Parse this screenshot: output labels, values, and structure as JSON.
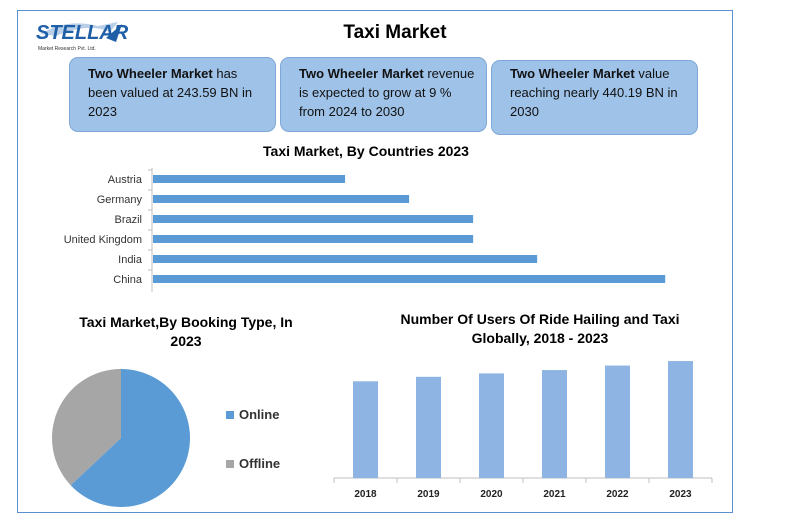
{
  "logo": {
    "brand": "STELLAR",
    "tagline": "Market Research Pvt. Ltd."
  },
  "title": "Taxi Market",
  "info_boxes": [
    {
      "bold": "Two Wheeler Market",
      "rest": " has been valued at 243.59 BN in 2023"
    },
    {
      "bold": "Two Wheeler Market",
      "rest": " revenue is expected to grow at 9 % from 2024 to 2030"
    },
    {
      "bold": "Two Wheeler Market",
      "rest": " value reaching nearly 440.19 BN in 2030"
    }
  ],
  "colors": {
    "bar": "#5b9bd5",
    "bar2": "#8db4e2",
    "online": "#5b9bd5",
    "offline": "#a6a6a6",
    "box": "#9fc2e8"
  },
  "chart_data": [
    {
      "type": "bar",
      "orientation": "horizontal",
      "title": "Taxi Market, By Countries 2023",
      "categories": [
        "Austria",
        "Germany",
        "Brazil",
        "United Kingdom",
        "India",
        "China"
      ],
      "values": [
        30,
        40,
        50,
        50,
        60,
        80
      ],
      "xlim": [
        0,
        82
      ],
      "grid": false
    },
    {
      "type": "pie",
      "title": "Taxi Market,By Booking Type, In 2023",
      "labels": [
        "Online",
        "Offline"
      ],
      "values": [
        63,
        37
      ],
      "legend": "right"
    },
    {
      "type": "bar",
      "title": "Number Of Users Of Ride Hailing and Taxi Globally, 2018 - 2023",
      "categories": [
        "2018",
        "2019",
        "2020",
        "2021",
        "2022",
        "2023"
      ],
      "values": [
        86,
        90,
        93,
        96,
        100,
        104
      ],
      "ylim": [
        0,
        110
      ],
      "grid": false
    }
  ]
}
